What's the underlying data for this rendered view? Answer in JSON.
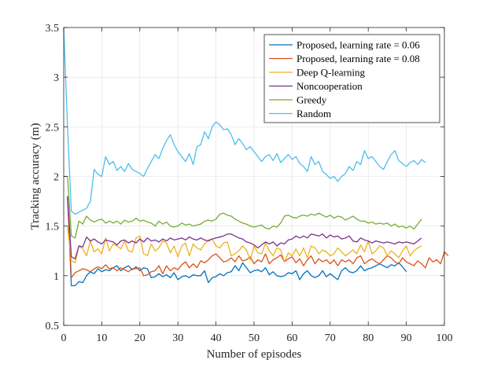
{
  "chart_data": {
    "type": "line",
    "title": "",
    "xlabel": "Number of episodes",
    "ylabel": "Tracking accuracy (m)",
    "xlim": [
      0,
      100
    ],
    "ylim": [
      0.5,
      3.5
    ],
    "xticks": [
      0,
      10,
      20,
      30,
      40,
      50,
      60,
      70,
      80,
      90,
      100
    ],
    "yticks": [
      0.5,
      1,
      1.5,
      2,
      2.5,
      3,
      3.5
    ],
    "xtick_labels": [
      "0",
      "10",
      "20",
      "30",
      "40",
      "50",
      "60",
      "70",
      "80",
      "90",
      "100"
    ],
    "ytick_labels": [
      "0.5",
      "1",
      "1.5",
      "2",
      "2.5",
      "3",
      "3.5"
    ],
    "grid": true,
    "legend_position": "top-right",
    "series": [
      {
        "name": "Proposed, learning rate = 0.06",
        "color": "#0072BD",
        "x_start": 1,
        "values": [
          1.8,
          0.9,
          0.9,
          0.94,
          0.93,
          1.0,
          1.04,
          1.02,
          1.07,
          1.04,
          1.06,
          1.05,
          1.08,
          1.1,
          1.05,
          1.08,
          1.1,
          1.06,
          1.09,
          1.05,
          1.08,
          1.07,
          0.98,
          0.99,
          1.02,
          0.99,
          1.01,
          0.98,
          1.03,
          0.96,
          0.99,
          1.0,
          0.98,
          1.01,
          1.0,
          1.0,
          1.05,
          0.93,
          0.98,
          0.99,
          1.02,
          1.0,
          1.03,
          1.04,
          1.1,
          1.05,
          1.13,
          1.08,
          1.03,
          1.05,
          1.06,
          1.04,
          1.08,
          1.01,
          1.04,
          1.0,
          0.99,
          1.0,
          1.03,
          1.02,
          1.05,
          0.96,
          1.02,
          1.05,
          1.0,
          0.98,
          1.0,
          1.05,
          0.99,
          1.02,
          0.99,
          0.96,
          1.05,
          1.08,
          1.04,
          1.03,
          1.05,
          1.1,
          1.05,
          1.07,
          1.08,
          1.1,
          1.12,
          1.1,
          1.08,
          1.11,
          1.1,
          1.13,
          1.09,
          1.04
        ]
      },
      {
        "name": "Proposed, learning rate = 0.08",
        "color": "#D95319",
        "x_start": 1,
        "values": [
          1.8,
          0.98,
          1.03,
          1.05,
          1.07,
          1.06,
          1.04,
          1.07,
          1.09,
          1.07,
          1.11,
          1.07,
          1.08,
          1.05,
          1.08,
          1.06,
          1.04,
          1.07,
          1.07,
          1.08,
          1.0,
          1.01,
          1.04,
          1.05,
          1.1,
          1.02,
          1.1,
          1.05,
          1.08,
          1.06,
          1.11,
          1.14,
          1.08,
          1.12,
          1.08,
          1.15,
          1.13,
          1.16,
          1.2,
          1.22,
          1.18,
          1.14,
          1.15,
          1.18,
          1.14,
          1.2,
          1.15,
          1.16,
          1.19,
          1.12,
          1.16,
          1.14,
          1.22,
          1.12,
          1.16,
          1.18,
          1.21,
          1.14,
          1.17,
          1.19,
          1.13,
          1.17,
          1.1,
          1.16,
          1.2,
          1.12,
          1.17,
          1.14,
          1.16,
          1.12,
          1.16,
          1.1,
          1.16,
          1.14,
          1.16,
          1.12,
          1.18,
          1.2,
          1.12,
          1.15,
          1.17,
          1.14,
          1.12,
          1.16,
          1.2,
          1.18,
          1.14,
          1.12,
          1.18,
          1.14,
          1.12,
          1.1,
          1.15,
          1.12,
          1.08,
          1.18,
          1.14,
          1.16,
          1.12,
          1.24,
          1.2
        ]
      },
      {
        "name": "Deep Q-learning",
        "color": "#EDB120",
        "x_start": 1,
        "values": [
          1.5,
          1.15,
          1.13,
          1.3,
          1.27,
          1.2,
          1.35,
          1.24,
          1.27,
          1.22,
          1.38,
          1.25,
          1.32,
          1.3,
          1.27,
          1.35,
          1.25,
          1.24,
          1.38,
          1.4,
          1.22,
          1.2,
          1.32,
          1.25,
          1.28,
          1.35,
          1.33,
          1.23,
          1.3,
          1.19,
          1.3,
          1.33,
          1.2,
          1.32,
          1.28,
          1.26,
          1.32,
          1.36,
          1.37,
          1.3,
          1.28,
          1.33,
          1.34,
          1.2,
          1.22,
          1.25,
          1.3,
          1.26,
          1.16,
          1.3,
          1.23,
          1.22,
          1.33,
          1.25,
          1.2,
          1.28,
          1.26,
          1.14,
          1.23,
          1.2,
          1.27,
          1.2,
          1.28,
          1.18,
          1.3,
          1.28,
          1.22,
          1.26,
          1.24,
          1.2,
          1.22,
          1.28,
          1.24,
          1.2,
          1.23,
          1.26,
          1.22,
          1.31,
          1.24,
          1.35,
          1.22,
          1.25,
          1.3,
          1.28,
          1.2,
          1.25,
          1.22,
          1.18,
          1.25,
          1.3,
          1.2,
          1.25,
          1.28,
          1.3
        ]
      },
      {
        "name": "Noncooperation",
        "color": "#7E2F8E",
        "x_start": 1,
        "values": [
          1.8,
          1.19,
          1.17,
          1.3,
          1.29,
          1.39,
          1.35,
          1.37,
          1.34,
          1.32,
          1.36,
          1.35,
          1.34,
          1.31,
          1.35,
          1.36,
          1.33,
          1.35,
          1.33,
          1.37,
          1.34,
          1.38,
          1.35,
          1.36,
          1.34,
          1.37,
          1.35,
          1.38,
          1.36,
          1.37,
          1.38,
          1.36,
          1.39,
          1.37,
          1.36,
          1.38,
          1.36,
          1.35,
          1.37,
          1.38,
          1.39,
          1.4,
          1.42,
          1.42,
          1.4,
          1.38,
          1.37,
          1.34,
          1.33,
          1.31,
          1.28,
          1.31,
          1.34,
          1.32,
          1.34,
          1.3,
          1.33,
          1.32,
          1.36,
          1.37,
          1.4,
          1.38,
          1.4,
          1.38,
          1.42,
          1.41,
          1.4,
          1.42,
          1.38,
          1.41,
          1.39,
          1.4,
          1.37,
          1.38,
          1.4,
          1.35,
          1.34,
          1.38,
          1.36,
          1.35,
          1.33,
          1.35,
          1.34,
          1.33,
          1.34,
          1.33,
          1.32,
          1.34,
          1.33,
          1.34,
          1.33,
          1.32,
          1.35,
          1.38
        ]
      },
      {
        "name": "Greedy",
        "color": "#77AC30",
        "x_start": 0,
        "values": [
          2.0,
          2.0,
          1.4,
          1.38,
          1.55,
          1.52,
          1.6,
          1.56,
          1.54,
          1.56,
          1.57,
          1.53,
          1.55,
          1.53,
          1.55,
          1.52,
          1.56,
          1.54,
          1.55,
          1.58,
          1.55,
          1.56,
          1.54,
          1.53,
          1.5,
          1.55,
          1.52,
          1.54,
          1.5,
          1.49,
          1.5,
          1.53,
          1.51,
          1.52,
          1.5,
          1.51,
          1.52,
          1.55,
          1.56,
          1.55,
          1.57,
          1.62,
          1.63,
          1.61,
          1.6,
          1.57,
          1.55,
          1.53,
          1.52,
          1.5,
          1.49,
          1.5,
          1.51,
          1.48,
          1.47,
          1.5,
          1.49,
          1.53,
          1.6,
          1.61,
          1.59,
          1.58,
          1.6,
          1.61,
          1.6,
          1.62,
          1.61,
          1.63,
          1.61,
          1.59,
          1.61,
          1.58,
          1.6,
          1.59,
          1.56,
          1.58,
          1.6,
          1.57,
          1.55,
          1.55,
          1.53,
          1.54,
          1.52,
          1.53,
          1.52,
          1.53,
          1.5,
          1.52,
          1.49,
          1.5,
          1.48,
          1.5,
          1.47,
          1.52,
          1.57
        ]
      },
      {
        "name": "Random",
        "color": "#4DBEEE",
        "x_start": 0,
        "values": [
          3.5,
          2.5,
          1.65,
          1.62,
          1.64,
          1.66,
          1.68,
          1.75,
          2.07,
          2.02,
          2.0,
          2.2,
          2.12,
          2.15,
          2.06,
          2.1,
          2.05,
          2.13,
          2.07,
          2.05,
          2.03,
          2.0,
          2.08,
          2.15,
          2.22,
          2.18,
          2.28,
          2.36,
          2.42,
          2.32,
          2.25,
          2.2,
          2.15,
          2.23,
          2.12,
          2.3,
          2.32,
          2.45,
          2.38,
          2.5,
          2.55,
          2.52,
          2.47,
          2.48,
          2.42,
          2.32,
          2.38,
          2.33,
          2.27,
          2.3,
          2.25,
          2.2,
          2.15,
          2.2,
          2.22,
          2.16,
          2.23,
          2.14,
          2.18,
          2.22,
          2.17,
          2.2,
          2.13,
          2.1,
          2.05,
          2.2,
          2.12,
          2.15,
          2.05,
          2.02,
          1.98,
          2.0,
          1.95,
          2.0,
          2.03,
          2.1,
          2.06,
          2.15,
          2.12,
          2.26,
          2.18,
          2.2,
          2.15,
          2.1,
          2.07,
          2.15,
          2.22,
          2.26,
          2.16,
          2.13,
          2.1,
          2.14,
          2.16,
          2.12,
          2.17,
          2.14
        ]
      }
    ]
  }
}
